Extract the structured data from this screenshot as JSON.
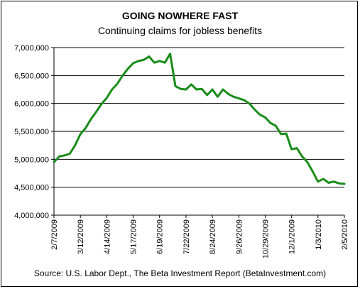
{
  "chart_data": {
    "type": "line",
    "title": "GOING NOWHERE FAST",
    "subtitle": "Continuing claims for jobless benefits",
    "source": "Source:  U.S. Labor Dept., The Beta Investment Report (BetaInvestment.com)",
    "ylim": [
      4000000,
      7000000
    ],
    "y_ticks": [
      4000000,
      4500000,
      5000000,
      5500000,
      6000000,
      6500000,
      7000000
    ],
    "y_tick_labels": [
      "4,000,000",
      "4,500,000",
      "5,000,000",
      "5,500,000",
      "6,000,000",
      "6,500,000",
      "7,000,000"
    ],
    "x_tick_labels": [
      "2/7/2009",
      "3/12/2009",
      "4/14/2009",
      "5/17/2009",
      "6/19/2009",
      "7/22/2009",
      "8/24/2009",
      "9/26/2009",
      "10/29/2009",
      "12/1/2009",
      "1/3/2010",
      "2/5/2010"
    ],
    "grid": "horizontal",
    "series_color": "#1a8c1a",
    "series": [
      {
        "values": [
          4950000,
          5050000,
          5070000,
          5100000,
          5250000,
          5450000,
          5560000,
          5720000,
          5850000,
          5990000,
          6100000,
          6250000,
          6350000,
          6500000,
          6620000,
          6720000,
          6760000,
          6780000,
          6840000,
          6730000,
          6760000,
          6730000,
          6890000,
          6310000,
          6260000,
          6250000,
          6340000,
          6250000,
          6260000,
          6150000,
          6250000,
          6120000,
          6250000,
          6170000,
          6120000,
          6090000,
          6060000,
          6000000,
          5890000,
          5800000,
          5750000,
          5650000,
          5600000,
          5450000,
          5460000,
          5180000,
          5200000,
          5050000,
          4950000,
          4780000,
          4600000,
          4650000,
          4580000,
          4600000,
          4570000,
          4560000
        ]
      }
    ]
  }
}
